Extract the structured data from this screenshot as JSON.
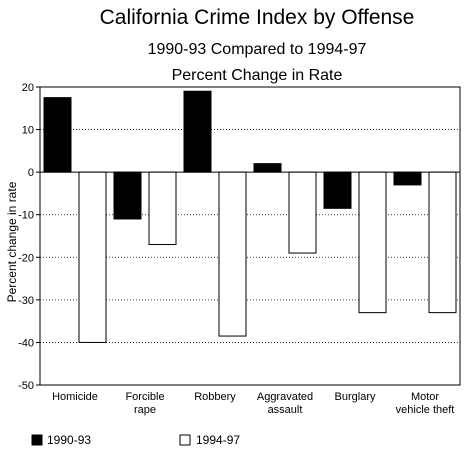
{
  "chart_data": {
    "type": "bar",
    "title": "California Crime Index by Offense",
    "subtitle": "1990-93 Compared to 1994-97",
    "subtitle2": "Percent Change in Rate",
    "ylabel": "Percent change in rate",
    "xlabel": "",
    "ylim": [
      -50,
      20
    ],
    "yticks": [
      20,
      10,
      0,
      -10,
      -20,
      -30,
      -40,
      -50
    ],
    "grid": true,
    "legend_position": "bottom",
    "categories": [
      [
        "Homicide"
      ],
      [
        "Forcible",
        "rape"
      ],
      [
        "Robbery"
      ],
      [
        "Aggravated",
        "assault"
      ],
      [
        "Burglary"
      ],
      [
        "Motor",
        "vehicle theft"
      ]
    ],
    "series": [
      {
        "name": "1990-93",
        "color": "#000000",
        "values": [
          17.5,
          -11,
          19,
          2,
          -8.5,
          -3
        ]
      },
      {
        "name": "1994-97",
        "color": "#ffffff",
        "values": [
          -40,
          -17,
          -38.5,
          -19,
          -33,
          -33
        ]
      }
    ]
  }
}
